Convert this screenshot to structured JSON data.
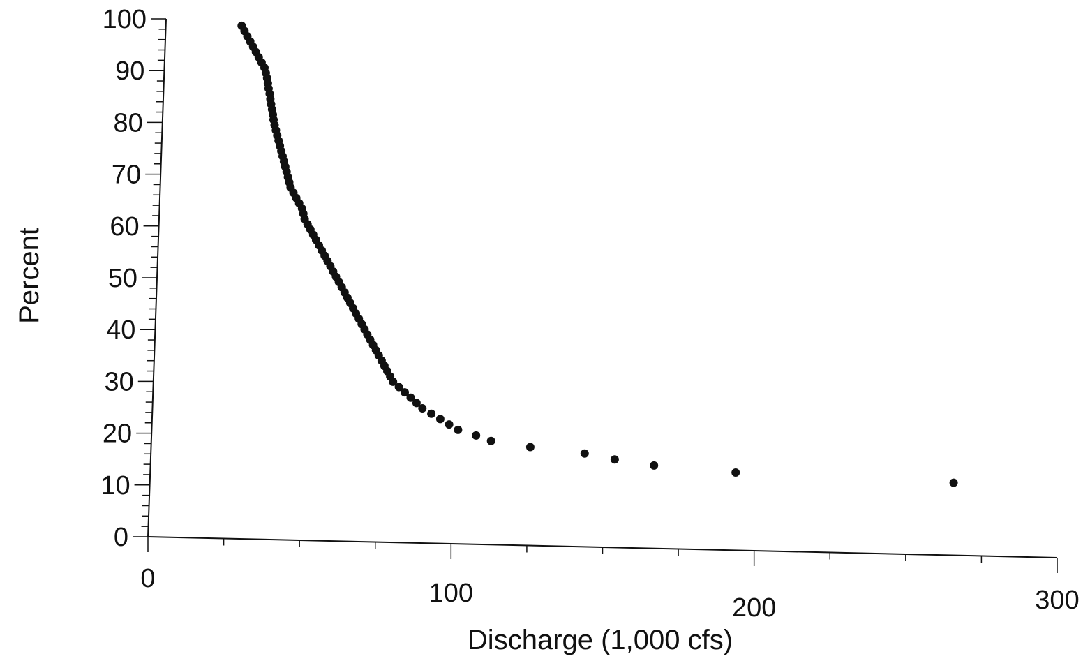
{
  "chart_data": {
    "type": "scatter",
    "title": "",
    "xlabel": "Discharge (1,000 cfs)",
    "ylabel": "Percent",
    "xlim": [
      0,
      300
    ],
    "ylim": [
      0,
      100
    ],
    "xticks": [
      0,
      100,
      200,
      300
    ],
    "yticks": [
      0,
      10,
      20,
      30,
      40,
      50,
      60,
      70,
      80,
      90,
      100
    ],
    "grid": false,
    "marker_color": "#111111",
    "series": [
      {
        "x": [
          25,
          26,
          27,
          28,
          29,
          30,
          31,
          32,
          33,
          33.5,
          34,
          34.3,
          34.6,
          35,
          35.3,
          35.6,
          36,
          36.3,
          36.6,
          37,
          37.5,
          38,
          38.5,
          39,
          39.5,
          40,
          40.5,
          41,
          41.5,
          42,
          42.5,
          43,
          44,
          45,
          46,
          47,
          47.5,
          48,
          49,
          50,
          51,
          52,
          53,
          54,
          55,
          56,
          57,
          58,
          59,
          60,
          61,
          62,
          63,
          64,
          65,
          66,
          67,
          68,
          69,
          70,
          71,
          72,
          73,
          74,
          75,
          76,
          77,
          78,
          79,
          81,
          83,
          85,
          87,
          89,
          92,
          95,
          98,
          101,
          107,
          112,
          125,
          143,
          153,
          166,
          193,
          265
        ],
        "y": [
          99,
          98,
          97,
          96,
          95,
          94,
          93,
          92,
          91,
          90,
          89,
          88,
          87,
          86,
          85,
          84,
          83,
          82,
          81,
          80,
          79,
          78,
          77,
          76,
          75,
          74,
          73,
          72,
          71,
          70,
          69,
          68,
          67,
          66,
          65,
          64,
          63,
          62,
          61,
          60,
          59,
          58,
          57,
          56,
          55,
          54,
          53,
          52,
          51,
          50,
          49,
          48,
          47,
          46,
          45,
          44,
          43,
          42,
          41,
          40,
          39,
          38,
          37,
          36,
          35,
          34,
          33,
          32,
          31,
          30,
          29,
          28,
          27,
          26,
          25,
          24,
          23,
          22,
          21,
          20,
          19,
          18,
          17,
          16,
          15,
          14
        ]
      }
    ]
  }
}
